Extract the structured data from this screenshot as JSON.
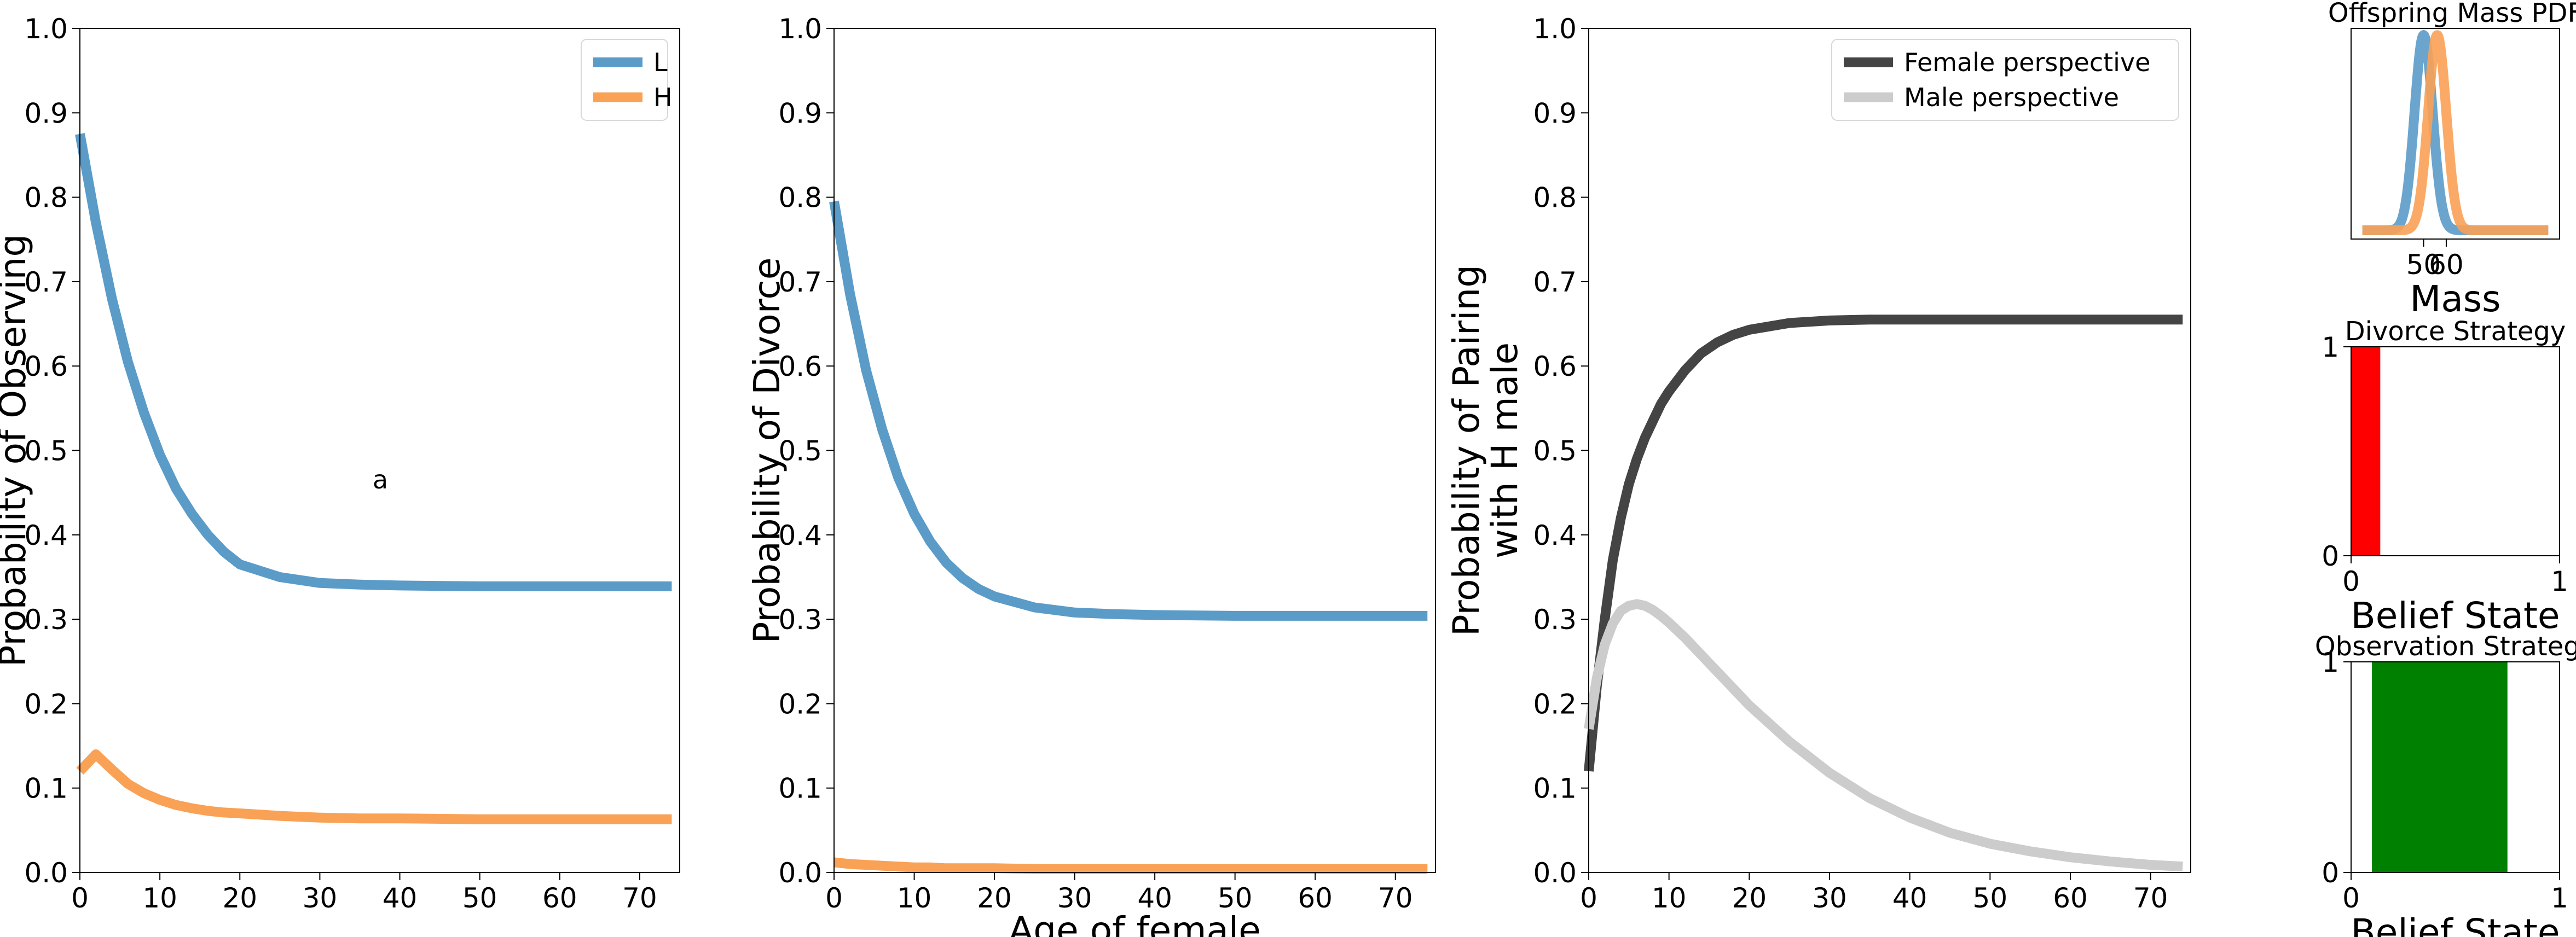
{
  "chart_data": [
    {
      "type": "line",
      "xlabel": "",
      "ylabel": "Probability of Observing",
      "xlim": [
        0,
        75
      ],
      "ylim": [
        0,
        1
      ],
      "xticks": [
        "0",
        "10",
        "20",
        "30",
        "40",
        "50",
        "60",
        "70"
      ],
      "yticks": [
        "0.0",
        "0.1",
        "0.2",
        "0.3",
        "0.4",
        "0.5",
        "0.6",
        "0.7",
        "0.8",
        "0.9",
        "1.0"
      ],
      "legend_position": "top-right",
      "annotation": "a",
      "x": [
        0,
        2,
        4,
        6,
        8,
        10,
        12,
        14,
        16,
        18,
        20,
        25,
        30,
        35,
        40,
        50,
        60,
        74
      ],
      "series": [
        {
          "name": "L",
          "color": "#5b9bc8",
          "values": [
            0.875,
            0.77,
            0.68,
            0.605,
            0.545,
            0.495,
            0.455,
            0.425,
            0.4,
            0.38,
            0.365,
            0.35,
            0.343,
            0.341,
            0.34,
            0.339,
            0.339,
            0.339
          ]
        },
        {
          "name": "H",
          "color": "#f9a155",
          "values": [
            0.12,
            0.14,
            0.122,
            0.105,
            0.094,
            0.086,
            0.08,
            0.076,
            0.073,
            0.071,
            0.07,
            0.067,
            0.065,
            0.064,
            0.064,
            0.063,
            0.063,
            0.063
          ]
        }
      ]
    },
    {
      "type": "line",
      "xlabel": "Age of female",
      "ylabel": "Probability of Divorce",
      "xlim": [
        0,
        75
      ],
      "ylim": [
        0,
        1
      ],
      "xticks": [
        "0",
        "10",
        "20",
        "30",
        "40",
        "50",
        "60",
        "70"
      ],
      "yticks": [
        "0.0",
        "0.1",
        "0.2",
        "0.3",
        "0.4",
        "0.5",
        "0.6",
        "0.7",
        "0.8",
        "0.9",
        "1.0"
      ],
      "x": [
        0,
        2,
        4,
        6,
        8,
        10,
        12,
        14,
        16,
        18,
        20,
        25,
        30,
        35,
        40,
        50,
        60,
        74
      ],
      "series": [
        {
          "color": "#5b9bc8",
          "values": [
            0.795,
            0.685,
            0.595,
            0.525,
            0.468,
            0.425,
            0.392,
            0.367,
            0.349,
            0.336,
            0.327,
            0.314,
            0.308,
            0.306,
            0.305,
            0.304,
            0.304,
            0.304
          ]
        },
        {
          "color": "#f9a155",
          "values": [
            0.012,
            0.01,
            0.009,
            0.008,
            0.007,
            0.006,
            0.006,
            0.005,
            0.005,
            0.005,
            0.005,
            0.004,
            0.004,
            0.004,
            0.004,
            0.004,
            0.004,
            0.004
          ]
        }
      ]
    },
    {
      "type": "line",
      "xlabel": "",
      "ylabel": "Probability of Pairing with H male",
      "ylabel_lines": [
        "Probability of Pairing",
        "with H male"
      ],
      "xlim": [
        0,
        75
      ],
      "ylim": [
        0,
        1
      ],
      "xticks": [
        "0",
        "10",
        "20",
        "30",
        "40",
        "50",
        "60",
        "70"
      ],
      "yticks": [
        "0.0",
        "0.1",
        "0.2",
        "0.3",
        "0.4",
        "0.5",
        "0.6",
        "0.7",
        "0.8",
        "0.9",
        "1.0"
      ],
      "legend_position": "top-right",
      "x": [
        0,
        1,
        2,
        3,
        4,
        5,
        6,
        7,
        8,
        9,
        10,
        12,
        14,
        16,
        18,
        20,
        25,
        30,
        35,
        40,
        45,
        50,
        55,
        60,
        65,
        70,
        74
      ],
      "series": [
        {
          "name": "Female perspective",
          "color": "#444444",
          "values": [
            0.12,
            0.22,
            0.3,
            0.37,
            0.42,
            0.46,
            0.49,
            0.515,
            0.535,
            0.555,
            0.57,
            0.595,
            0.615,
            0.628,
            0.637,
            0.643,
            0.651,
            0.654,
            0.655,
            0.655,
            0.655,
            0.655,
            0.655,
            0.655,
            0.655,
            0.655,
            0.655
          ]
        },
        {
          "name": "Male perspective",
          "color": "#cccccc",
          "values": [
            0.17,
            0.23,
            0.27,
            0.295,
            0.31,
            0.316,
            0.318,
            0.316,
            0.311,
            0.304,
            0.296,
            0.278,
            0.258,
            0.238,
            0.218,
            0.198,
            0.155,
            0.118,
            0.088,
            0.065,
            0.047,
            0.034,
            0.025,
            0.018,
            0.013,
            0.009,
            0.007
          ]
        }
      ]
    },
    {
      "type": "line",
      "title": "Offspring Mass PDF",
      "xlabel": "Mass",
      "xticks": [
        "50",
        "60"
      ],
      "xlim": [
        18,
        110
      ],
      "series": [
        {
          "color": "#5b9bc8",
          "mean": 50,
          "sd": 4
        },
        {
          "color": "#f9a155",
          "mean": 56,
          "sd": 4
        }
      ]
    },
    {
      "type": "bar",
      "title": "Divorce Strategy",
      "xlabel": "Belief State",
      "xlim": [
        0,
        1
      ],
      "ylim": [
        0,
        1
      ],
      "xticks": [
        "0",
        "1"
      ],
      "yticks": [
        "0",
        "1"
      ],
      "bars": [
        {
          "x0": 0.0,
          "x1": 0.14,
          "value": 1,
          "color": "#ff0000"
        }
      ]
    },
    {
      "type": "bar",
      "title": "Observation Strategy",
      "xlabel": "Belief State",
      "xlim": [
        0,
        1
      ],
      "ylim": [
        0,
        1
      ],
      "xticks": [
        "0",
        "1"
      ],
      "yticks": [
        "0",
        "1"
      ],
      "bars": [
        {
          "x0": 0.1,
          "x1": 0.75,
          "value": 1,
          "color": "#008000"
        }
      ]
    }
  ]
}
